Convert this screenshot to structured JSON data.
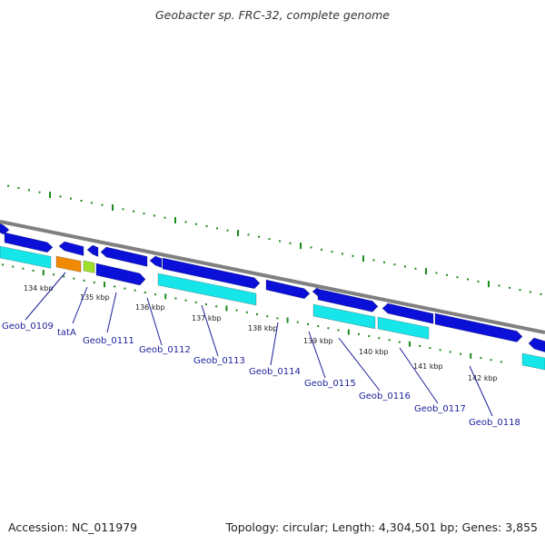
{
  "title": "Geobacter sp. FRC-32, complete genome",
  "footer": {
    "accession": "Accession: NC_011979",
    "summary": "Topology: circular; Length: 4,304,501 bp; Genes: 3,855"
  },
  "colors": {
    "backbone": "#808080",
    "cds": "#0a10d8",
    "cds_light": "#3340ff",
    "rna": "#16e6ea",
    "orange": "#f08a00",
    "green": "#9fe02a",
    "tick": "#1a8a1a",
    "label": "#1b1f9a"
  },
  "scale_labels": [
    "134 kbp",
    "135 kbp",
    "136 kbp",
    "137 kbp",
    "138 kbp",
    "139 kbp",
    "140 kbp",
    "141 kbp",
    "142 kbp"
  ],
  "genes": [
    {
      "name": "Geob_0109"
    },
    {
      "name": "tatA"
    },
    {
      "name": "Geob_0111"
    },
    {
      "name": "Geob_0112"
    },
    {
      "name": "Geob_0113"
    },
    {
      "name": "Geob_0114"
    },
    {
      "name": "Geob_0115"
    },
    {
      "name": "Geob_0116"
    },
    {
      "name": "Geob_0117"
    },
    {
      "name": "Geob_0118"
    }
  ]
}
